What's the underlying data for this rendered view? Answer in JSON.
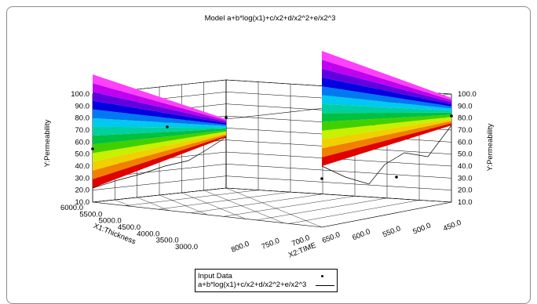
{
  "chart_data": {
    "type": "surface3d",
    "title": "Model a+b*log(x1)+c/x2+d/x2^2+e/x2^3",
    "x1label": "X1:Thickness",
    "x2label": "X2:TIME",
    "ylabel_left": "Y:Permeability",
    "ylabel_right": "Y:Permeability",
    "x1_ticks": [
      "6000.0",
      "5500.0",
      "5000.0",
      "4500.0",
      "4000.0",
      "3500.0",
      "3000.0"
    ],
    "x2_ticks": [
      "800.0",
      "750.0",
      "700.0",
      "650.0",
      "600.0",
      "550.0",
      "500.0",
      "450.0"
    ],
    "y_ticks": [
      "10.0",
      "20.0",
      "30.0",
      "40.0",
      "50.0",
      "60.0",
      "70.0",
      "80.0",
      "90.0",
      "100.0"
    ],
    "x1lim": [
      3000,
      6000
    ],
    "x2lim": [
      450,
      800
    ],
    "ylim": [
      10,
      100
    ],
    "grid": true,
    "legend_position": "bottom-center",
    "series": [
      {
        "name": "Input Data",
        "marker": "dot"
      },
      {
        "name": "a+b*log(x1)+c/x2+d/x2^2+e/x2^3",
        "marker": "line"
      }
    ],
    "color_bands": [
      "#e00000",
      "#f08000",
      "#f0d000",
      "#c8f000",
      "#40d000",
      "#00c040",
      "#00d0a0",
      "#00c8f0",
      "#0078f0",
      "#0000e0",
      "#6000e0",
      "#c000f0",
      "#ff40ff"
    ]
  }
}
